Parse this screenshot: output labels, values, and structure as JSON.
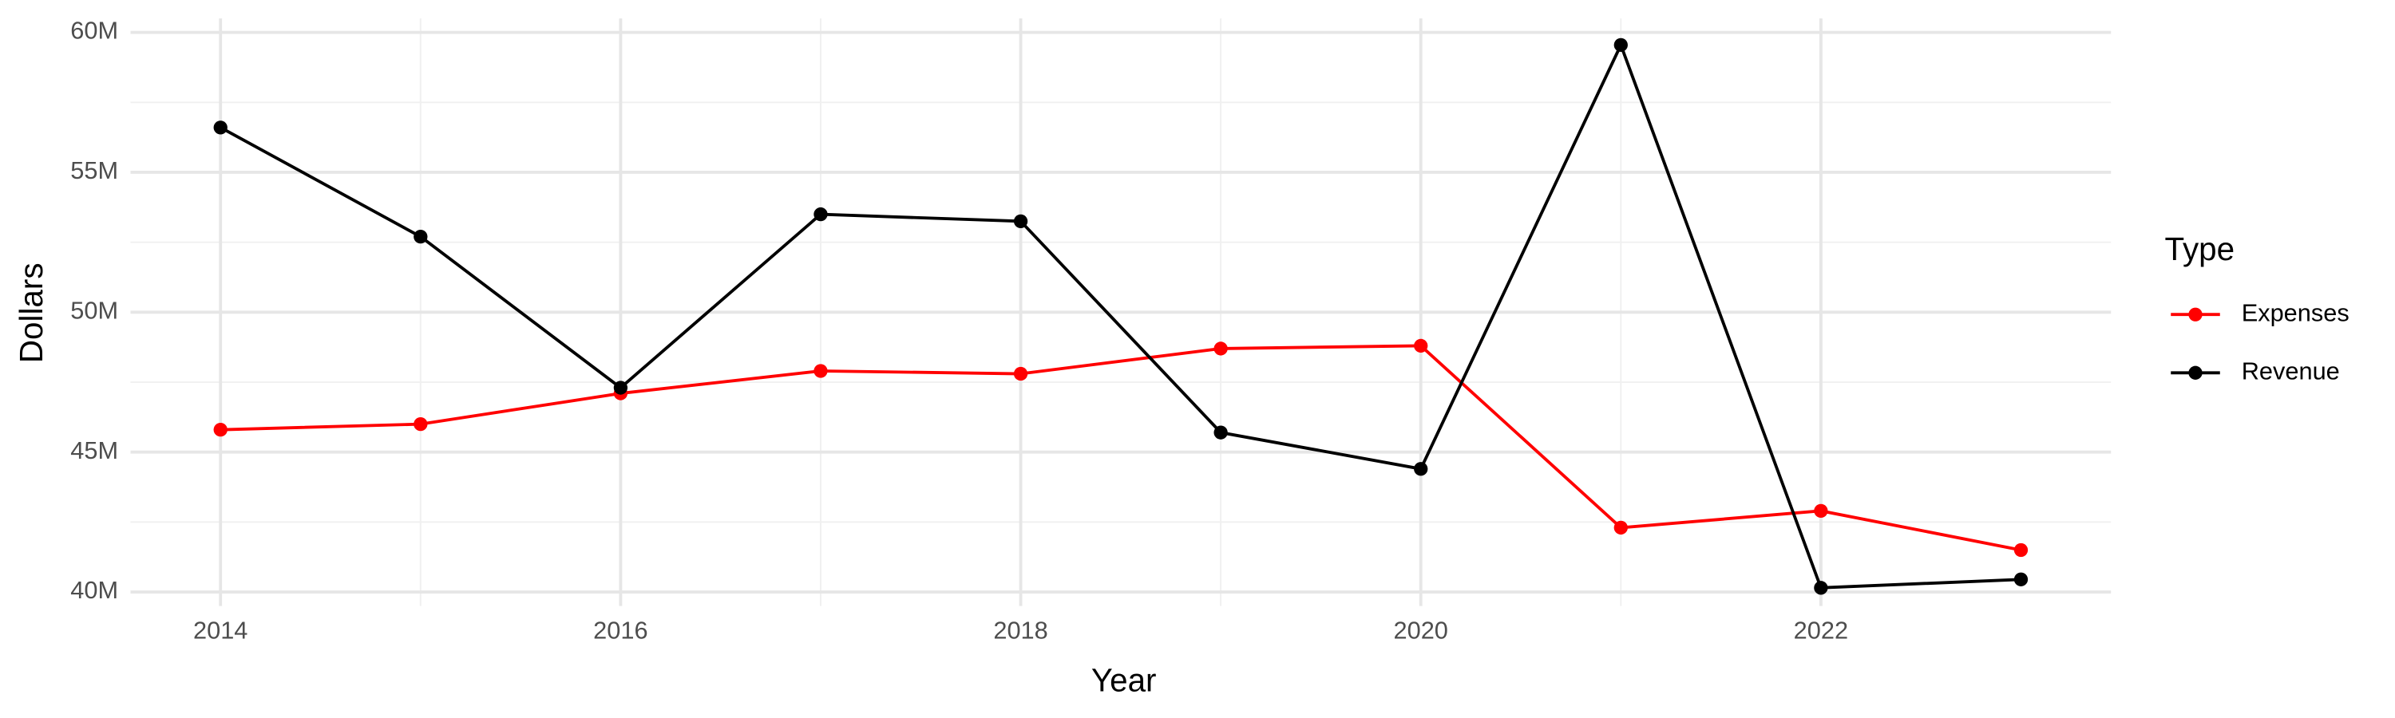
{
  "chart_data": {
    "type": "line",
    "x_label": "Year",
    "y_label": "Dollars",
    "legend_title": "Type",
    "x": [
      2014,
      2015,
      2016,
      2017,
      2018,
      2019,
      2020,
      2021,
      2022,
      2023
    ],
    "series": [
      {
        "name": "Expenses",
        "color": "#ff0000",
        "values": [
          45800000,
          46000000,
          47100000,
          47900000,
          47800000,
          48700000,
          48800000,
          42300000,
          42900000,
          41500000
        ]
      },
      {
        "name": "Revenue",
        "color": "#000000",
        "values": [
          56600000,
          52700000,
          47300000,
          53500000,
          53250000,
          45700000,
          44400000,
          59550000,
          40150000,
          40450000
        ]
      }
    ],
    "xlim": [
      2013.55,
      2023.45
    ],
    "xticks": [
      2014,
      2016,
      2018,
      2020,
      2022
    ],
    "ylim": [
      39500000,
      60500000
    ],
    "yticks": [
      {
        "value": 40000000,
        "label": "40M"
      },
      {
        "value": 45000000,
        "label": "45M"
      },
      {
        "value": 50000000,
        "label": "50M"
      },
      {
        "value": 55000000,
        "label": "55M"
      },
      {
        "value": 60000000,
        "label": "60M"
      }
    ],
    "grid": true,
    "legend": "right"
  }
}
